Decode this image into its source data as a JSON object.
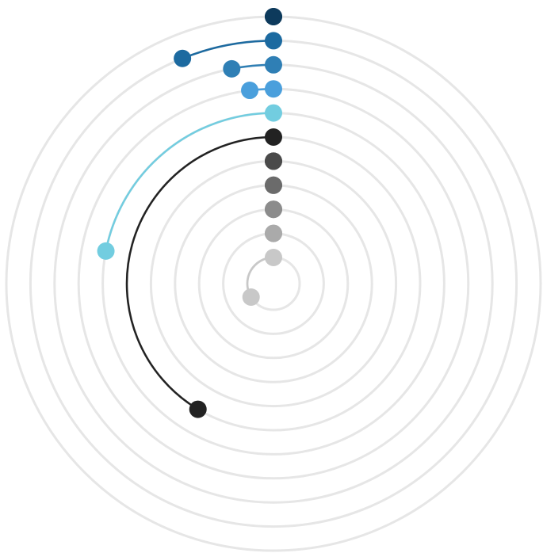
{
  "chart_data": {
    "type": "radial-arc",
    "values": [
      0,
      22,
      11,
      7,
      79,
      149,
      0,
      0,
      0,
      0,
      121
    ],
    "colors": [
      "#0d3a5c",
      "#1c6aa0",
      "#2f7fb5",
      "#4a9fdc",
      "#72cde0",
      "#222222",
      "#4a4a4a",
      "#6b6b6b",
      "#8c8c8c",
      "#aaaaaa",
      "#c8c8c8"
    ],
    "grid": true
  }
}
